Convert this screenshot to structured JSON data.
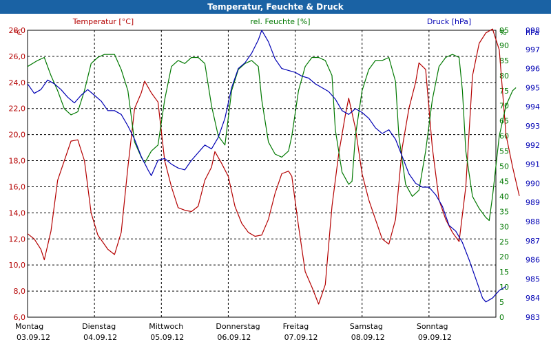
{
  "chart_data": {
    "type": "line",
    "title": "Temperatur, Feuchte & Druck",
    "colors": {
      "temperature": "#b40000",
      "humidity": "#007800",
      "pressure": "#0000b4",
      "title_bg": "#1a62a4",
      "grid": "#000000"
    },
    "axes": {
      "temperature": {
        "unit": "°C",
        "label": "Temperatur [°C]",
        "min": 6,
        "max": 28,
        "ticks": [
          "6,0",
          "8,0",
          "10,0",
          "12,0",
          "14,0",
          "16,0",
          "18,0",
          "20,0",
          "22,0",
          "24,0",
          "26,0",
          "28,0"
        ]
      },
      "humidity": {
        "unit": "%",
        "label": "rel. Feuchte [%]",
        "min": 0,
        "max": 95,
        "ticks": [
          "0",
          "5",
          "10",
          "15",
          "20",
          "25",
          "30",
          "35",
          "40",
          "45",
          "50",
          "55",
          "60",
          "65",
          "70",
          "75",
          "80",
          "85",
          "90",
          "95"
        ]
      },
      "pressure": {
        "unit": "hPa",
        "label": "Druck [hPa]",
        "min": 983,
        "max": 998,
        "ticks": [
          "983",
          "984",
          "985",
          "986",
          "987",
          "988",
          "989",
          "990",
          "991",
          "992",
          "993",
          "994",
          "995",
          "996",
          "997",
          "998"
        ]
      }
    },
    "x": {
      "min": 0,
      "max": 7,
      "days": [
        {
          "name": "Montag",
          "date": "03.09.12"
        },
        {
          "name": "Dienstag",
          "date": "04.09.12"
        },
        {
          "name": "Mittwoch",
          "date": "05.09.12"
        },
        {
          "name": "Donnerstag",
          "date": "06.09.12"
        },
        {
          "name": "Freitag",
          "date": "07.09.12"
        },
        {
          "name": "Samstag",
          "date": "08.09.12"
        },
        {
          "name": "Sonntag",
          "date": "09.09.12"
        }
      ]
    },
    "series": [
      {
        "key": "temperature",
        "name": "Temperatur",
        "axis": "temperature",
        "points": [
          [
            0,
            12.4
          ],
          [
            0.1,
            12
          ],
          [
            0.2,
            11.2
          ],
          [
            0.25,
            10.4
          ],
          [
            0.35,
            12.6
          ],
          [
            0.45,
            16.5
          ],
          [
            0.55,
            18
          ],
          [
            0.65,
            19.5
          ],
          [
            0.75,
            19.6
          ],
          [
            0.85,
            18
          ],
          [
            0.95,
            14
          ],
          [
            1.05,
            12.3
          ],
          [
            1.2,
            11.2
          ],
          [
            1.3,
            10.8
          ],
          [
            1.4,
            12.5
          ],
          [
            1.5,
            17.5
          ],
          [
            1.6,
            22
          ],
          [
            1.7,
            23.2
          ],
          [
            1.75,
            24.1
          ],
          [
            1.85,
            23.2
          ],
          [
            1.95,
            22.5
          ],
          [
            2.05,
            18
          ],
          [
            2.15,
            16
          ],
          [
            2.25,
            14.4
          ],
          [
            2.35,
            14.2
          ],
          [
            2.45,
            14.1
          ],
          [
            2.55,
            14.5
          ],
          [
            2.65,
            16.5
          ],
          [
            2.75,
            17.5
          ],
          [
            2.8,
            18.7
          ],
          [
            2.9,
            17.8
          ],
          [
            3.0,
            16.8
          ],
          [
            3.1,
            14.5
          ],
          [
            3.2,
            13.2
          ],
          [
            3.3,
            12.5
          ],
          [
            3.4,
            12.2
          ],
          [
            3.5,
            12.3
          ],
          [
            3.6,
            13.5
          ],
          [
            3.7,
            15.5
          ],
          [
            3.8,
            17
          ],
          [
            3.9,
            17.2
          ],
          [
            3.95,
            16.8
          ],
          [
            4.05,
            13
          ],
          [
            4.15,
            9.5
          ],
          [
            4.25,
            8.3
          ],
          [
            4.35,
            7
          ],
          [
            4.45,
            8.5
          ],
          [
            4.55,
            14.5
          ],
          [
            4.65,
            18.5
          ],
          [
            4.75,
            21.5
          ],
          [
            4.8,
            22.8
          ],
          [
            4.9,
            20.5
          ],
          [
            5.0,
            17
          ],
          [
            5.1,
            15
          ],
          [
            5.2,
            13.5
          ],
          [
            5.3,
            12
          ],
          [
            5.4,
            11.6
          ],
          [
            5.5,
            13.5
          ],
          [
            5.6,
            19
          ],
          [
            5.7,
            22
          ],
          [
            5.8,
            24
          ],
          [
            5.85,
            25.5
          ],
          [
            5.95,
            25
          ],
          [
            6.05,
            19
          ],
          [
            6.15,
            15
          ],
          [
            6.25,
            13.5
          ],
          [
            6.35,
            12.5
          ],
          [
            6.45,
            11.8
          ],
          [
            6.55,
            16
          ],
          [
            6.65,
            24.5
          ],
          [
            6.75,
            27
          ],
          [
            6.85,
            27.8
          ],
          [
            6.95,
            28.1
          ],
          [
            7.05,
            26.5
          ],
          [
            7.15,
            20
          ],
          [
            7.25,
            17.5
          ],
          [
            7.35,
            15.3
          ]
        ]
      },
      {
        "key": "humidity",
        "name": "rel. Feuchte",
        "axis": "humidity",
        "points": [
          [
            0,
            83
          ],
          [
            0.15,
            85
          ],
          [
            0.25,
            86
          ],
          [
            0.35,
            80
          ],
          [
            0.45,
            75
          ],
          [
            0.55,
            69
          ],
          [
            0.65,
            67
          ],
          [
            0.75,
            68
          ],
          [
            0.85,
            75
          ],
          [
            0.95,
            84
          ],
          [
            1.05,
            86
          ],
          [
            1.15,
            87
          ],
          [
            1.3,
            87
          ],
          [
            1.4,
            82
          ],
          [
            1.5,
            75
          ],
          [
            1.6,
            58
          ],
          [
            1.7,
            53
          ],
          [
            1.75,
            51
          ],
          [
            1.85,
            55
          ],
          [
            1.95,
            57
          ],
          [
            2.05,
            72
          ],
          [
            2.15,
            83
          ],
          [
            2.25,
            85
          ],
          [
            2.35,
            84
          ],
          [
            2.45,
            86
          ],
          [
            2.55,
            86
          ],
          [
            2.65,
            84
          ],
          [
            2.75,
            70
          ],
          [
            2.85,
            60
          ],
          [
            2.95,
            57
          ],
          [
            3.05,
            75
          ],
          [
            3.15,
            82
          ],
          [
            3.25,
            84
          ],
          [
            3.35,
            85
          ],
          [
            3.45,
            83
          ],
          [
            3.5,
            72
          ],
          [
            3.6,
            58
          ],
          [
            3.7,
            54
          ],
          [
            3.8,
            53
          ],
          [
            3.9,
            55
          ],
          [
            3.95,
            60
          ],
          [
            4.05,
            75
          ],
          [
            4.15,
            83
          ],
          [
            4.25,
            86
          ],
          [
            4.35,
            86
          ],
          [
            4.45,
            85
          ],
          [
            4.55,
            80
          ],
          [
            4.6,
            62
          ],
          [
            4.7,
            48
          ],
          [
            4.8,
            44
          ],
          [
            4.85,
            45
          ],
          [
            4.9,
            60
          ],
          [
            5.0,
            75
          ],
          [
            5.1,
            82
          ],
          [
            5.2,
            85
          ],
          [
            5.3,
            85
          ],
          [
            5.4,
            86
          ],
          [
            5.5,
            78
          ],
          [
            5.55,
            60
          ],
          [
            5.65,
            44
          ],
          [
            5.75,
            40
          ],
          [
            5.85,
            42
          ],
          [
            5.95,
            55
          ],
          [
            6.05,
            72
          ],
          [
            6.15,
            83
          ],
          [
            6.25,
            86
          ],
          [
            6.35,
            87
          ],
          [
            6.45,
            86
          ],
          [
            6.5,
            75
          ],
          [
            6.55,
            55
          ],
          [
            6.65,
            40
          ],
          [
            6.75,
            36
          ],
          [
            6.85,
            33
          ],
          [
            6.9,
            32
          ],
          [
            6.95,
            40
          ],
          [
            7.05,
            60
          ],
          [
            7.15,
            70
          ],
          [
            7.25,
            75
          ],
          [
            7.3,
            76
          ]
        ]
      },
      {
        "key": "pressure",
        "name": "Druck",
        "axis": "pressure",
        "points": [
          [
            0,
            995.2
          ],
          [
            0.1,
            994.7
          ],
          [
            0.2,
            994.9
          ],
          [
            0.3,
            995.4
          ],
          [
            0.4,
            995.2
          ],
          [
            0.5,
            994.9
          ],
          [
            0.6,
            994.5
          ],
          [
            0.7,
            994.2
          ],
          [
            0.8,
            994.6
          ],
          [
            0.9,
            994.9
          ],
          [
            1.0,
            994.6
          ],
          [
            1.1,
            994.3
          ],
          [
            1.2,
            993.8
          ],
          [
            1.3,
            993.8
          ],
          [
            1.4,
            993.6
          ],
          [
            1.5,
            993.0
          ],
          [
            1.6,
            992.3
          ],
          [
            1.7,
            991.4
          ],
          [
            1.8,
            990.7
          ],
          [
            1.85,
            990.4
          ],
          [
            1.95,
            991.2
          ],
          [
            2.05,
            991.3
          ],
          [
            2.15,
            991.0
          ],
          [
            2.25,
            990.8
          ],
          [
            2.35,
            990.7
          ],
          [
            2.45,
            991.2
          ],
          [
            2.55,
            991.6
          ],
          [
            2.65,
            992.0
          ],
          [
            2.75,
            991.8
          ],
          [
            2.85,
            992.4
          ],
          [
            2.95,
            993.4
          ],
          [
            3.05,
            995.0
          ],
          [
            3.15,
            996.0
          ],
          [
            3.25,
            996.3
          ],
          [
            3.35,
            996.8
          ],
          [
            3.45,
            997.5
          ],
          [
            3.5,
            998.0
          ],
          [
            3.6,
            997.4
          ],
          [
            3.7,
            996.5
          ],
          [
            3.8,
            996.0
          ],
          [
            3.9,
            995.9
          ],
          [
            4.0,
            995.8
          ],
          [
            4.1,
            995.6
          ],
          [
            4.2,
            995.5
          ],
          [
            4.3,
            995.2
          ],
          [
            4.4,
            995.0
          ],
          [
            4.5,
            994.8
          ],
          [
            4.6,
            994.4
          ],
          [
            4.7,
            993.8
          ],
          [
            4.8,
            993.6
          ],
          [
            4.9,
            993.9
          ],
          [
            5.0,
            993.7
          ],
          [
            5.1,
            993.4
          ],
          [
            5.2,
            992.9
          ],
          [
            5.3,
            992.6
          ],
          [
            5.4,
            992.8
          ],
          [
            5.5,
            992.3
          ],
          [
            5.6,
            991.4
          ],
          [
            5.7,
            990.5
          ],
          [
            5.8,
            990.0
          ],
          [
            5.9,
            989.8
          ],
          [
            6.0,
            989.8
          ],
          [
            6.1,
            989.4
          ],
          [
            6.2,
            988.8
          ],
          [
            6.3,
            987.8
          ],
          [
            6.4,
            987.5
          ],
          [
            6.5,
            986.9
          ],
          [
            6.6,
            986.0
          ],
          [
            6.7,
            985.0
          ],
          [
            6.8,
            984.0
          ],
          [
            6.85,
            983.8
          ],
          [
            6.95,
            984.0
          ],
          [
            7.05,
            984.4
          ],
          [
            7.15,
            984.6
          ]
        ]
      }
    ]
  }
}
